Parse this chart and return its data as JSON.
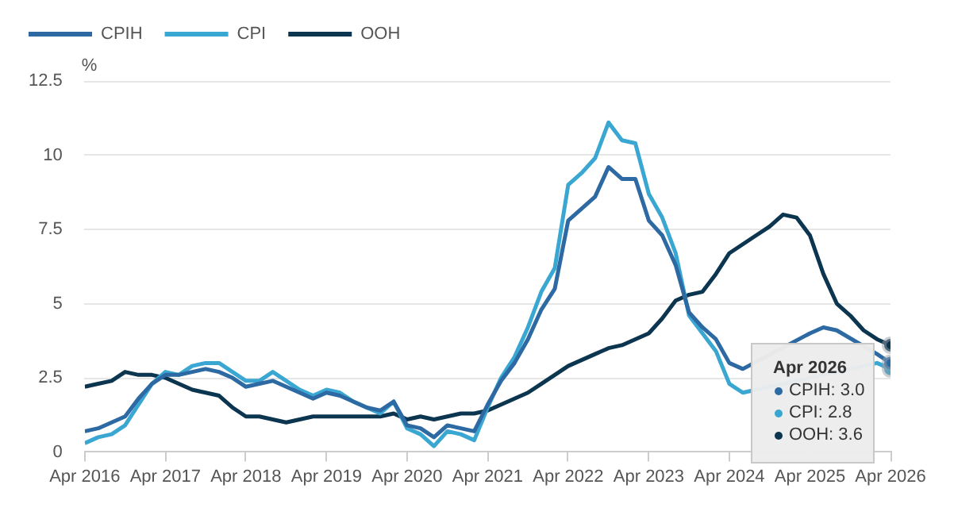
{
  "chart_data": {
    "type": "line",
    "ylabel": "%",
    "legend": "top left",
    "grid": "y",
    "x": [
      "2016-04",
      "2016-06",
      "2016-08",
      "2016-10",
      "2016-12",
      "2017-02",
      "2017-04",
      "2017-06",
      "2017-08",
      "2017-10",
      "2017-12",
      "2018-02",
      "2018-04",
      "2018-06",
      "2018-08",
      "2018-10",
      "2018-12",
      "2019-02",
      "2019-04",
      "2019-06",
      "2019-08",
      "2019-10",
      "2019-12",
      "2020-02",
      "2020-04",
      "2020-06",
      "2020-08",
      "2020-10",
      "2020-12",
      "2021-02",
      "2021-04",
      "2021-06",
      "2021-08",
      "2021-10",
      "2021-12",
      "2022-02",
      "2022-04",
      "2022-06",
      "2022-08",
      "2022-10",
      "2022-12",
      "2023-02",
      "2023-04",
      "2023-06",
      "2023-08",
      "2023-10",
      "2023-12",
      "2024-02",
      "2024-04",
      "2024-06",
      "2024-08",
      "2024-10",
      "2024-12",
      "2025-02",
      "2025-04",
      "2025-06",
      "2025-08",
      "2025-10",
      "2025-12",
      "2026-02",
      "2026-04"
    ],
    "series": [
      {
        "name": "CPIH",
        "color": "#2d6aa3",
        "values": [
          0.7,
          0.8,
          1.0,
          1.2,
          1.8,
          2.3,
          2.6,
          2.6,
          2.7,
          2.8,
          2.7,
          2.5,
          2.2,
          2.3,
          2.4,
          2.2,
          2.0,
          1.8,
          2.0,
          1.9,
          1.7,
          1.5,
          1.4,
          1.7,
          0.9,
          0.8,
          0.5,
          0.9,
          0.8,
          0.7,
          1.6,
          2.4,
          3.0,
          3.8,
          4.8,
          5.5,
          7.8,
          8.2,
          8.6,
          9.6,
          9.2,
          9.2,
          7.8,
          7.3,
          6.3,
          4.7,
          4.2,
          3.8,
          3.0,
          2.8,
          null,
          null,
          null,
          null,
          4.0,
          4.2,
          4.1,
          null,
          null,
          3.3,
          3.0
        ]
      },
      {
        "name": "CPI",
        "color": "#3aa6d2",
        "values": [
          0.3,
          0.5,
          0.6,
          0.9,
          1.6,
          2.3,
          2.7,
          2.6,
          2.9,
          3.0,
          3.0,
          2.7,
          2.4,
          2.4,
          2.7,
          2.4,
          2.1,
          1.9,
          2.1,
          2.0,
          1.7,
          1.5,
          1.3,
          1.7,
          0.8,
          0.6,
          0.2,
          0.7,
          0.6,
          0.4,
          1.5,
          2.5,
          3.2,
          4.2,
          5.4,
          6.2,
          9.0,
          9.4,
          9.9,
          11.1,
          10.5,
          10.4,
          8.7,
          7.9,
          6.7,
          4.6,
          4.0,
          3.4,
          2.3,
          2.0,
          null,
          null,
          null,
          null,
          null,
          null,
          null,
          null,
          null,
          3.0,
          2.8
        ]
      },
      {
        "name": "OOH",
        "color": "#0c3550",
        "values": [
          2.2,
          2.3,
          2.4,
          2.7,
          2.6,
          2.6,
          2.5,
          2.3,
          2.1,
          2.0,
          1.9,
          1.5,
          1.2,
          1.2,
          1.1,
          1.0,
          1.1,
          1.2,
          1.2,
          1.2,
          1.2,
          1.2,
          1.2,
          1.3,
          1.1,
          1.2,
          1.1,
          1.2,
          1.3,
          1.3,
          1.4,
          1.6,
          1.8,
          2.0,
          2.3,
          2.6,
          2.9,
          3.1,
          3.3,
          3.5,
          3.6,
          3.8,
          4.0,
          4.5,
          5.1,
          5.3,
          5.4,
          6.0,
          6.7,
          7.0,
          7.3,
          7.6,
          8.0,
          7.9,
          7.3,
          6.0,
          5.0,
          4.6,
          4.1,
          3.8,
          3.6
        ]
      }
    ],
    "xlim": [
      "2016-04",
      "2026-04"
    ],
    "xticks": [
      {
        "value": "2016-04",
        "label": "Apr 2016"
      },
      {
        "value": "2017-04",
        "label": "Apr 2017"
      },
      {
        "value": "2018-04",
        "label": "Apr 2018"
      },
      {
        "value": "2019-04",
        "label": "Apr 2019"
      },
      {
        "value": "2020-04",
        "label": "Apr 2020"
      },
      {
        "value": "2021-04",
        "label": "Apr 2021"
      },
      {
        "value": "2022-04",
        "label": "Apr 2022"
      },
      {
        "value": "2023-04",
        "label": "Apr 2023"
      },
      {
        "value": "2024-04",
        "label": "Apr 2024"
      },
      {
        "value": "2025-04",
        "label": "Apr 2025"
      },
      {
        "value": "2026-04",
        "label": "Apr 2026"
      }
    ],
    "ylim": [
      0,
      12.5
    ],
    "yticks": [
      0,
      2.5,
      5,
      7.5,
      10,
      12.5
    ],
    "annotations": [
      "Apr 2026",
      "CPIH: 3.0",
      "CPI: 2.8",
      "OOH: 3.6"
    ]
  }
}
